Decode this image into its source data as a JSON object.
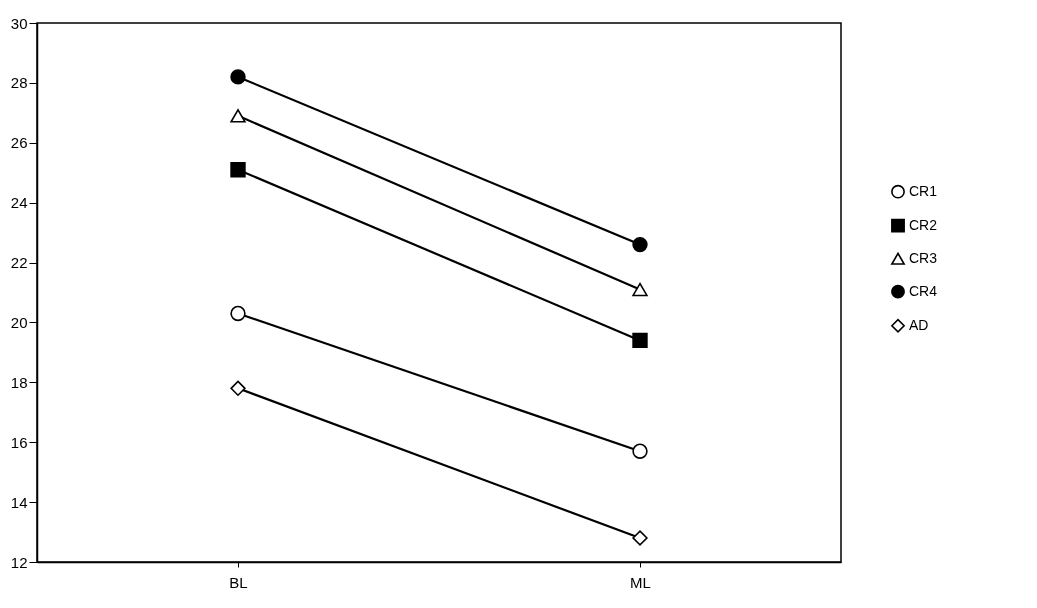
{
  "chart_data": {
    "type": "line",
    "categories": [
      "BL",
      "ML"
    ],
    "series": [
      {
        "name": "CR1",
        "color": "#000000",
        "colors": [
          "#ffffff",
          "#ffffff"
        ],
        "values": [
          20.3,
          15.7
        ]
      },
      {
        "name": "CR2",
        "color": "#000000",
        "colors": [
          "#000000",
          "#000000"
        ],
        "values": [
          25.1,
          19.4
        ]
      },
      {
        "name": "CR3",
        "color": "#000000",
        "colors": [
          "#ffffff",
          "#ffffff"
        ],
        "values": [
          26.9,
          21.1
        ]
      },
      {
        "name": "CR4",
        "color": "#000000",
        "colors": [
          "#000000",
          "#000000"
        ],
        "values": [
          28.2,
          22.6
        ]
      },
      {
        "name": "AD",
        "color": "#000000",
        "colors": [
          "#ffffff",
          "#ffffff"
        ],
        "values": [
          17.8,
          12.8
        ]
      }
    ],
    "marker": [
      "circle",
      "square",
      "triangle",
      "circle",
      "diamond"
    ],
    "ylim": [
      12,
      30
    ],
    "yticks": [
      12,
      14,
      16,
      18,
      20,
      22,
      24,
      26,
      28,
      30
    ],
    "grid": false,
    "legend": "right",
    "line_style": "solid"
  }
}
